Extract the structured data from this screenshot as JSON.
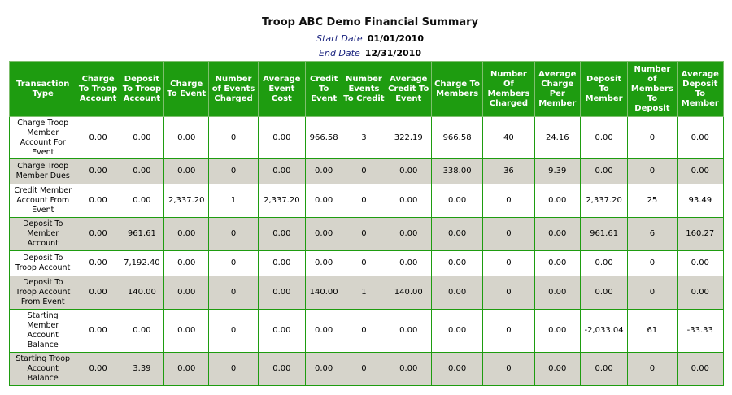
{
  "report": {
    "title": "Troop ABC Demo Financial Summary",
    "start_label": "Start Date",
    "start_value": "01/01/2010",
    "end_label": "End Date",
    "end_value": "12/31/2010"
  },
  "colors": {
    "header_bg": "#1e9c10",
    "alt_row": "#d6d4cb",
    "label_blue": "#1a237e"
  },
  "columns": [
    "Transaction Type",
    "Charge To Troop Account",
    "Deposit To Troop Account",
    "Charge To Event",
    "Number of Events Charged",
    "Average Event Cost",
    "Credit To Event",
    "Number Events To Credit",
    "Average Credit To Event",
    "Charge To Members",
    "Number Of Members Charged",
    "Average Charge Per Member",
    "Deposit To Member",
    "Number of Members To Deposit",
    "Average Deposit To Member"
  ],
  "rows": [
    [
      "Charge Troop Member Account For Event",
      "0.00",
      "0.00",
      "0.00",
      "0",
      "0.00",
      "966.58",
      "3",
      "322.19",
      "966.58",
      "40",
      "24.16",
      "0.00",
      "0",
      "0.00"
    ],
    [
      "Charge Troop Member Dues",
      "0.00",
      "0.00",
      "0.00",
      "0",
      "0.00",
      "0.00",
      "0",
      "0.00",
      "338.00",
      "36",
      "9.39",
      "0.00",
      "0",
      "0.00"
    ],
    [
      "Credit Member Account From Event",
      "0.00",
      "0.00",
      "2,337.20",
      "1",
      "2,337.20",
      "0.00",
      "0",
      "0.00",
      "0.00",
      "0",
      "0.00",
      "2,337.20",
      "25",
      "93.49"
    ],
    [
      "Deposit To Member Account",
      "0.00",
      "961.61",
      "0.00",
      "0",
      "0.00",
      "0.00",
      "0",
      "0.00",
      "0.00",
      "0",
      "0.00",
      "961.61",
      "6",
      "160.27"
    ],
    [
      "Deposit To Troop Account",
      "0.00",
      "7,192.40",
      "0.00",
      "0",
      "0.00",
      "0.00",
      "0",
      "0.00",
      "0.00",
      "0",
      "0.00",
      "0.00",
      "0",
      "0.00"
    ],
    [
      "Deposit To Troop Account From Event",
      "0.00",
      "140.00",
      "0.00",
      "0",
      "0.00",
      "140.00",
      "1",
      "140.00",
      "0.00",
      "0",
      "0.00",
      "0.00",
      "0",
      "0.00"
    ],
    [
      "Starting Member Account Balance",
      "0.00",
      "0.00",
      "0.00",
      "0",
      "0.00",
      "0.00",
      "0",
      "0.00",
      "0.00",
      "0",
      "0.00",
      "-2,033.04",
      "61",
      "-33.33"
    ],
    [
      "Starting Troop Account Balance",
      "0.00",
      "3.39",
      "0.00",
      "0",
      "0.00",
      "0.00",
      "0",
      "0.00",
      "0.00",
      "0",
      "0.00",
      "0.00",
      "0",
      "0.00"
    ]
  ]
}
